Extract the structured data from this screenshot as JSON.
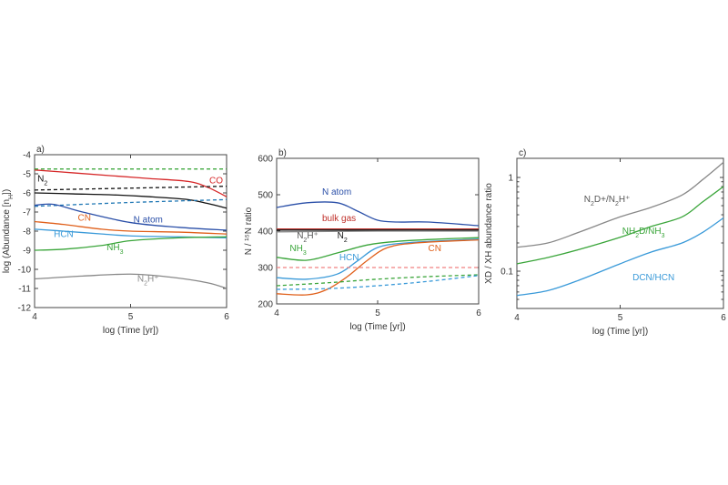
{
  "chart_data": [
    {
      "type": "line",
      "panel_label": "a)",
      "xlabel": "log (Time [yr])",
      "ylabel": "log (Abundance [n",
      "ylabel_sub": "H",
      "ylabel_tail": "])",
      "xlim": [
        4,
        6
      ],
      "ylim": [
        -12,
        -4
      ],
      "x_ticks": [
        4,
        5,
        6
      ],
      "y_ticks": [
        -4,
        -5,
        -6,
        -7,
        -8,
        -9,
        -10,
        -11,
        -12
      ],
      "y_scale": "linear",
      "grid": false,
      "series": [
        {
          "name": "CO",
          "color": "#d62728",
          "dash": false,
          "x": [
            4.0,
            4.4,
            4.8,
            5.2,
            5.6,
            5.8,
            6.0
          ],
          "y": [
            -4.8,
            -4.95,
            -5.1,
            -5.25,
            -5.4,
            -5.7,
            -6.2
          ]
        },
        {
          "name": "",
          "color": "#2ca02c",
          "dash": true,
          "x": [
            4.0,
            6.0
          ],
          "y": [
            -4.75,
            -4.75
          ]
        },
        {
          "name": "N2",
          "color": "#111111",
          "dash": true,
          "x": [
            4.0,
            5.0,
            6.0
          ],
          "y": [
            -5.85,
            -5.75,
            -5.65
          ]
        },
        {
          "name": "N2",
          "color": "#111111",
          "dash": false,
          "x": [
            4.0,
            4.4,
            4.8,
            5.2,
            5.6,
            5.8,
            6.0
          ],
          "y": [
            -6.0,
            -6.05,
            -6.1,
            -6.2,
            -6.35,
            -6.55,
            -6.8
          ]
        },
        {
          "name": "",
          "color": "#1f77b4",
          "dash": true,
          "x": [
            4.0,
            5.0,
            6.0
          ],
          "y": [
            -6.7,
            -6.5,
            -6.35
          ]
        },
        {
          "name": "N atom",
          "color": "#2a4fa8",
          "dash": false,
          "x": [
            4.0,
            4.2,
            4.5,
            5.0,
            5.5,
            6.0
          ],
          "y": [
            -6.65,
            -6.6,
            -7.0,
            -7.55,
            -7.8,
            -7.95
          ]
        },
        {
          "name": "CN",
          "color": "#e0601b",
          "dash": false,
          "x": [
            4.0,
            4.3,
            4.7,
            5.0,
            5.5,
            6.0
          ],
          "y": [
            -7.5,
            -7.65,
            -7.9,
            -8.0,
            -8.05,
            -8.15
          ]
        },
        {
          "name": "HCN",
          "color": "#3a9ad9",
          "dash": false,
          "x": [
            4.0,
            4.3,
            4.7,
            5.0,
            5.5,
            6.0
          ],
          "y": [
            -7.9,
            -8.0,
            -8.15,
            -8.25,
            -8.3,
            -8.35
          ]
        },
        {
          "name": "NH3",
          "color": "#3aa53a",
          "dash": false,
          "x": [
            4.0,
            4.3,
            4.7,
            5.0,
            5.5,
            6.0
          ],
          "y": [
            -9.0,
            -8.95,
            -8.75,
            -8.5,
            -8.35,
            -8.3
          ]
        },
        {
          "name": "N2H+",
          "color": "#888888",
          "dash": false,
          "x": [
            4.0,
            4.5,
            5.0,
            5.4,
            5.8,
            6.0
          ],
          "y": [
            -10.5,
            -10.35,
            -10.25,
            -10.4,
            -10.7,
            -11.0
          ]
        }
      ],
      "annotations": [
        {
          "text": "CO",
          "color": "#d62728",
          "x": 5.82,
          "y": -5.5
        },
        {
          "text": "N",
          "sub": "2",
          "color": "#111111",
          "x": 4.03,
          "y": -5.4
        },
        {
          "text": "N atom",
          "color": "#2a4fa8",
          "x": 5.03,
          "y": -7.55
        },
        {
          "text": "CN",
          "color": "#e0601b",
          "x": 4.45,
          "y": -7.45
        },
        {
          "text": "HCN",
          "color": "#3a9ad9",
          "x": 4.2,
          "y": -8.3
        },
        {
          "text": "NH",
          "sub": "3",
          "color": "#3aa53a",
          "x": 4.75,
          "y": -9.0
        },
        {
          "text": "N",
          "sub": "2",
          "tail": "H⁺",
          "color": "#888888",
          "x": 5.07,
          "y": -10.65
        }
      ]
    },
    {
      "type": "line",
      "panel_label": "b)",
      "xlabel": "log (Time [yr])",
      "ylabel": "N / ¹⁵N ratio",
      "xlim": [
        4,
        6
      ],
      "ylim": [
        200,
        600
      ],
      "x_ticks": [
        4,
        5,
        6
      ],
      "y_ticks": [
        200,
        300,
        400,
        500,
        600
      ],
      "y_scale": "linear",
      "grid": false,
      "series": [
        {
          "name": "N atom",
          "color": "#2a4fa8",
          "dash": false,
          "x": [
            4.0,
            4.3,
            4.6,
            4.8,
            5.0,
            5.2,
            5.5,
            6.0
          ],
          "y": [
            465,
            478,
            478,
            455,
            430,
            425,
            425,
            415
          ]
        },
        {
          "name": "bulk gas",
          "color": "#c0302a",
          "dash": false,
          "x": [
            4.0,
            6.0
          ],
          "y": [
            406,
            406
          ]
        },
        {
          "name": "N2",
          "color": "#111111",
          "dash": false,
          "x": [
            4.0,
            5.0,
            6.0
          ],
          "y": [
            403,
            403,
            403
          ]
        },
        {
          "name": "N2H+",
          "color": "#888888",
          "dash": false,
          "x": [
            4.0,
            5.0,
            6.0
          ],
          "y": [
            398,
            400,
            400
          ]
        },
        {
          "name": "NH3",
          "color": "#3aa53a",
          "dash": false,
          "x": [
            4.0,
            4.3,
            4.6,
            4.9,
            5.2,
            5.6,
            6.0
          ],
          "y": [
            328,
            320,
            340,
            362,
            372,
            378,
            382
          ]
        },
        {
          "name": "HCN",
          "color": "#3a9ad9",
          "dash": false,
          "x": [
            4.0,
            4.3,
            4.6,
            4.8,
            5.0,
            5.3,
            6.0
          ],
          "y": [
            272,
            268,
            282,
            318,
            355,
            368,
            378
          ]
        },
        {
          "name": "CN",
          "color": "#e0601b",
          "dash": false,
          "x": [
            4.0,
            4.3,
            4.5,
            4.7,
            4.9,
            5.1,
            5.4,
            6.0
          ],
          "y": [
            228,
            225,
            240,
            275,
            320,
            355,
            368,
            376
          ]
        },
        {
          "name": "",
          "color": "#f08080",
          "dash": true,
          "x": [
            4.0,
            6.0
          ],
          "y": [
            300,
            300
          ]
        },
        {
          "name": "",
          "color": "#3aa53a",
          "dash": true,
          "x": [
            4.0,
            4.5,
            5.0,
            5.5,
            6.0
          ],
          "y": [
            250,
            258,
            268,
            275,
            280
          ]
        },
        {
          "name": "",
          "color": "#3a9ad9",
          "dash": true,
          "x": [
            4.0,
            4.5,
            5.0,
            5.5,
            6.0
          ],
          "y": [
            240,
            242,
            250,
            262,
            278
          ]
        }
      ],
      "annotations": [
        {
          "text": "N atom",
          "color": "#2a4fa8",
          "x": 4.45,
          "y": 500
        },
        {
          "text": "bulk gas",
          "color": "#c0302a",
          "x": 4.45,
          "y": 428
        },
        {
          "text": "N",
          "sub": "2",
          "tail": "H⁺",
          "color": "#555555",
          "x": 4.2,
          "y": 380
        },
        {
          "text": "N",
          "sub": "2",
          "color": "#111111",
          "x": 4.6,
          "y": 380
        },
        {
          "text": "NH",
          "sub": "3",
          "color": "#3aa53a",
          "x": 4.13,
          "y": 345
        },
        {
          "text": "HCN",
          "color": "#3a9ad9",
          "x": 4.62,
          "y": 320
        },
        {
          "text": "CN",
          "color": "#e0601b",
          "x": 5.5,
          "y": 345
        }
      ]
    },
    {
      "type": "line",
      "panel_label": "c)",
      "xlabel": "log (Time [yr])",
      "ylabel": "XD / XH abundance ratio",
      "xlim": [
        4,
        6
      ],
      "ylim": [
        0.04,
        1.6
      ],
      "x_ticks": [
        4,
        5,
        6
      ],
      "y_ticks": [
        0.1,
        1
      ],
      "y_tick_labels": [
        "0.1",
        "1"
      ],
      "y_scale": "log",
      "grid": false,
      "series": [
        {
          "name": "N2D+/N2H+",
          "color": "#888888",
          "dash": false,
          "x": [
            4.0,
            4.3,
            4.6,
            5.0,
            5.3,
            5.6,
            5.8,
            6.0
          ],
          "y": [
            0.18,
            0.2,
            0.26,
            0.38,
            0.48,
            0.65,
            0.95,
            1.45
          ]
        },
        {
          "name": "NH2D/NH3",
          "color": "#3aa53a",
          "dash": false,
          "x": [
            4.0,
            4.3,
            4.6,
            5.0,
            5.3,
            5.6,
            5.8,
            6.0
          ],
          "y": [
            0.12,
            0.14,
            0.17,
            0.23,
            0.3,
            0.38,
            0.55,
            0.8
          ]
        },
        {
          "name": "DCN/HCN",
          "color": "#3a9ad9",
          "dash": false,
          "x": [
            4.0,
            4.3,
            4.6,
            5.0,
            5.3,
            5.6,
            5.8,
            6.0
          ],
          "y": [
            0.055,
            0.062,
            0.08,
            0.12,
            0.16,
            0.2,
            0.26,
            0.37
          ]
        }
      ],
      "annotations": [
        {
          "text": "N",
          "sub": "2",
          "tail": "D+/N",
          "sub2": "2",
          "tail2": "H⁺",
          "color": "#555555",
          "x": 4.65,
          "y": 0.55
        },
        {
          "text": "NH",
          "sub": "2",
          "tail": "D/NH",
          "sub2": "3",
          "color": "#3aa53a",
          "x": 5.02,
          "y": 0.25
        },
        {
          "text": "DCN/HCN",
          "color": "#3a9ad9",
          "x": 5.12,
          "y": 0.08
        }
      ]
    }
  ]
}
